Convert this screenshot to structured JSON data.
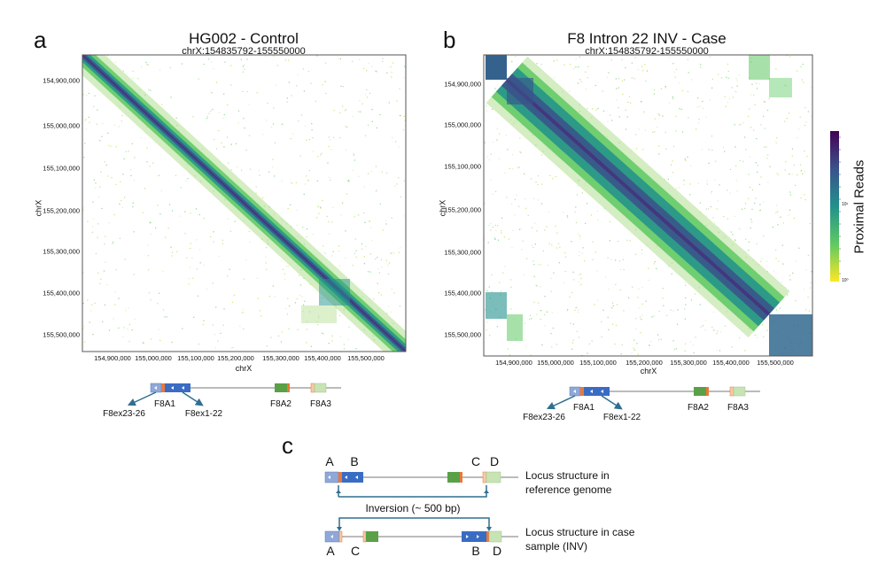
{
  "panel_a": {
    "letter": "a",
    "title": "HG002 - Control",
    "subtitle": "chrX:154835792-155550000",
    "xlabel": "chrX",
    "ylabel": "chrX",
    "yticks": [
      "154,900,000",
      "155,000,000",
      "155,100,000",
      "155,200,000",
      "155,300,000",
      "155,400,000",
      "155,500,000"
    ],
    "xticks": [
      "154,900,000",
      "155,000,000",
      "155,100,000",
      "155,200,000",
      "155,300,000",
      "155,400,000",
      "155,500,000"
    ],
    "genes": {
      "f8a1": "F8A1",
      "f8a2": "F8A2",
      "f8a3": "F8A3",
      "exons_left": "F8ex23-26",
      "exons_right": "F8ex1-22"
    }
  },
  "panel_b": {
    "letter": "b",
    "title": "F8 Intron 22 INV - Case",
    "subtitle": "chrX:154835792-155550000",
    "xlabel": "chrX",
    "ylabel": "chrX",
    "yticks": [
      "154,900,000",
      "155,000,000",
      "155,100,000",
      "155,200,000",
      "155,300,000",
      "155,400,000",
      "155,500,000"
    ],
    "xticks": [
      "154,900,000",
      "155,000,000",
      "155,100,000",
      "155,200,000",
      "155,300,000",
      "155,400,000",
      "155,500,000"
    ],
    "genes": {
      "f8a1": "F8A1",
      "f8a2": "F8A2",
      "f8a3": "F8A3",
      "exons_left": "F8ex23-26",
      "exons_right": "F8ex1-22"
    }
  },
  "colorbar": {
    "label": "Proximal Reads",
    "scale": "log",
    "tick_low": "10⁰",
    "tick_mid": "10¹",
    "colormap": "viridis"
  },
  "panel_c": {
    "letter": "c",
    "top_labels": [
      "A",
      "B",
      "C",
      "D"
    ],
    "bottom_labels": [
      "A",
      "C",
      "B",
      "D"
    ],
    "inversion_label": "Inversion (~ 500 bp)",
    "reference_desc": [
      "Locus structure in",
      "reference genome"
    ],
    "case_desc": [
      "Locus structure in case",
      "sample (INV)"
    ]
  },
  "colors": {
    "light_blue": "#8fa8d8",
    "dark_blue": "#3a6cc4",
    "orange": "#e8793a",
    "green": "#5aa047",
    "light_green": "#c8e3b4",
    "arrow": "#2f6f8f"
  }
}
